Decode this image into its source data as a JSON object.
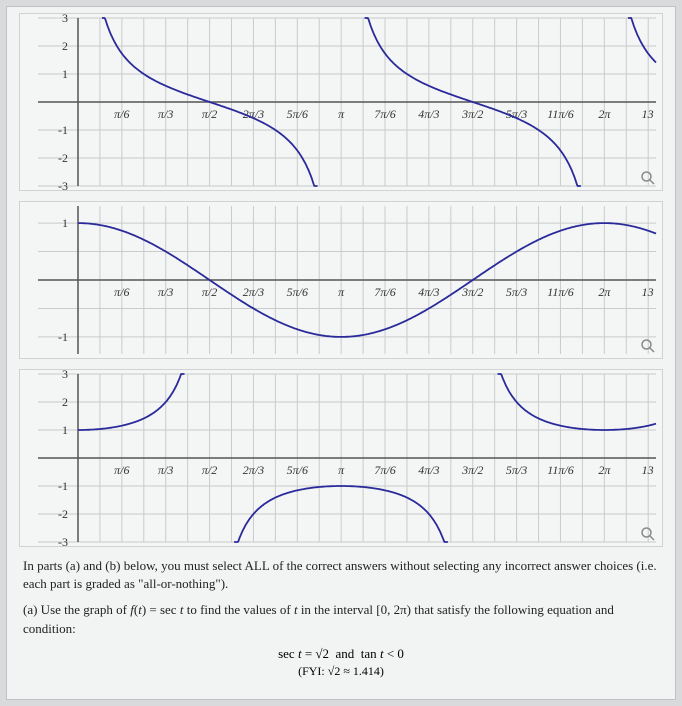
{
  "page": {
    "background_color": "#d8dadb",
    "panel_color": "#f2f3f3"
  },
  "axis": {
    "x_ticks": [
      "π/6",
      "π/3",
      "π/2",
      "2π/3",
      "5π/6",
      "π",
      "7π/6",
      "4π/3",
      "3π/2",
      "5π/3",
      "11π/6",
      "2π",
      "13"
    ],
    "x_tick_values": [
      0.5236,
      1.0472,
      1.5708,
      2.0944,
      2.618,
      3.1416,
      3.6652,
      4.1888,
      4.7124,
      5.236,
      5.7596,
      6.2832,
      6.8
    ],
    "grid_color": "#c9cbcc",
    "axis_color": "#555555",
    "curve_color": "#2a2a9a",
    "label_font": "italic 12px Georgia"
  },
  "charts": [
    {
      "name": "cot-chart",
      "type": "line",
      "ylim": [
        -3,
        3
      ],
      "yticks": [
        -3,
        -2,
        -1,
        1,
        2,
        3
      ],
      "func": "cot",
      "asymptotes": [
        0,
        3.1416,
        6.2832
      ]
    },
    {
      "name": "cos-chart",
      "type": "line",
      "ylim": [
        -1.3,
        1.3
      ],
      "yticks": [
        -1,
        1
      ],
      "func": "cos",
      "asymptotes": []
    },
    {
      "name": "sec-chart",
      "type": "line",
      "ylim": [
        -3,
        3
      ],
      "yticks": [
        -3,
        -2,
        -1,
        1,
        2,
        3
      ],
      "func": "sec",
      "asymptotes": [
        1.5708,
        4.7124
      ]
    }
  ],
  "text": {
    "instructions": "In parts (a) and (b) below, you must select ALL of the correct answers without selecting any incorrect answer choices (i.e. each part is graded as \"all-or-nothing\").",
    "partA": "(a) Use the graph of f(t) = sec t to find the values of t in the interval [0, 2π) that satisfy the following equation and condition:",
    "eq_main": "sec t = √2 and tan t < 0",
    "eq_sub": "(FYI: √2 ≈ 1.414)"
  }
}
